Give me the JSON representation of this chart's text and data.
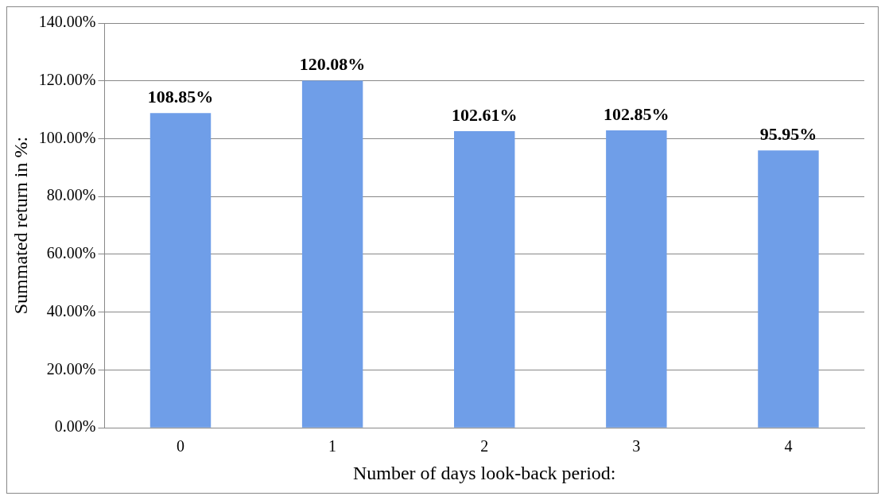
{
  "chart_data": {
    "type": "bar",
    "xlabel": "Number of days look-back period:",
    "ylabel": "Summated return in %:",
    "categories": [
      "0",
      "1",
      "2",
      "3",
      "4"
    ],
    "values": [
      108.85,
      120.08,
      102.61,
      102.85,
      95.95
    ],
    "value_labels": [
      "108.85%",
      "120.08%",
      "102.61%",
      "102.85%",
      "95.95%"
    ],
    "color": "#6f9ee8",
    "ylim": [
      0,
      140
    ],
    "yticks": [
      {
        "value": 0,
        "label": "0.00%"
      },
      {
        "value": 20,
        "label": "20.00%"
      },
      {
        "value": 40,
        "label": "40.00%"
      },
      {
        "value": 60,
        "label": "60.00%"
      },
      {
        "value": 80,
        "label": "80.00%"
      },
      {
        "value": 100,
        "label": "100.00%"
      },
      {
        "value": 120,
        "label": "120.00%"
      },
      {
        "value": 140,
        "label": "140.00%"
      }
    ],
    "grid": "y",
    "legend": false
  }
}
